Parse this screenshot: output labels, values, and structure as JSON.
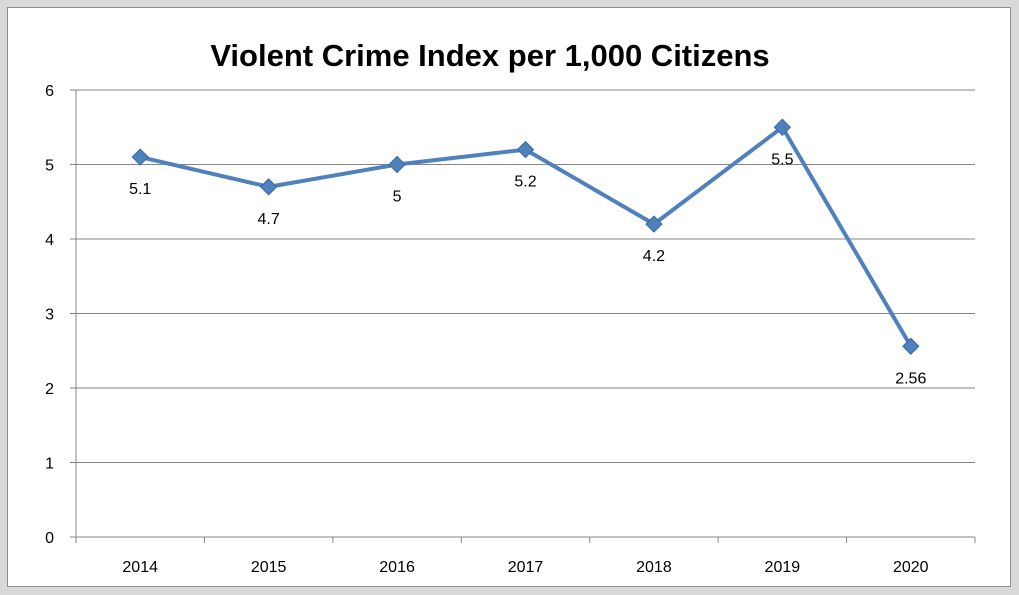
{
  "chart_data": {
    "type": "line",
    "title": "Violent Crime Index per 1,000 Citizens",
    "xlabel": "",
    "ylabel": "",
    "categories": [
      "2014",
      "2015",
      "2016",
      "2017",
      "2018",
      "2019",
      "2020"
    ],
    "series": [
      {
        "values": [
          5.1,
          4.7,
          5,
          5.2,
          4.2,
          5.5,
          2.56
        ],
        "data_labels": [
          "5.1",
          "4.7",
          "5",
          "5.2",
          "4.2",
          "5.5",
          "2.56"
        ],
        "color": "#4f81bd",
        "marker": "diamond"
      }
    ],
    "ylim": [
      0,
      6
    ],
    "yticks": [
      "0",
      "1",
      "2",
      "3",
      "4",
      "5",
      "6"
    ],
    "grid": true,
    "legend": "none"
  }
}
